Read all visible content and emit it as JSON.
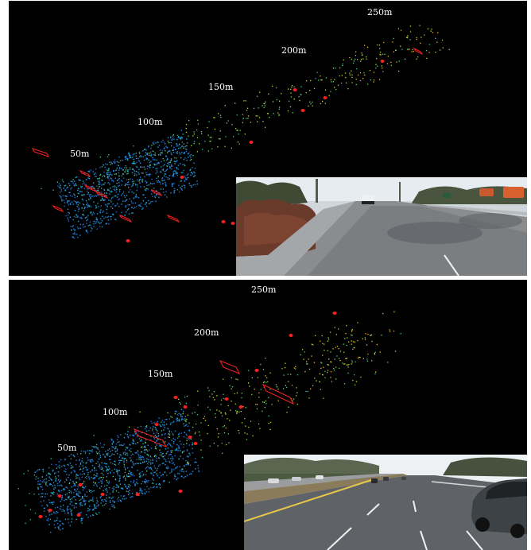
{
  "panels": [
    {
      "id": "top",
      "distance_labels": [
        "50m",
        "100m",
        "150m",
        "200m",
        "250m"
      ],
      "camera_scene": "suburban road with hedge, trees and parked cars"
    },
    {
      "id": "bottom",
      "distance_labels": [
        "50m",
        "100m",
        "150m",
        "200m",
        "250m"
      ],
      "camera_scene": "multi-lane highway with cars and hills"
    }
  ],
  "colors": {
    "background": "#000000",
    "box": "#ff2020",
    "label": "#ffffff",
    "points_near": "#1f4fd0",
    "points_mid": "#20c0e0",
    "points_far": "#c8e020"
  }
}
